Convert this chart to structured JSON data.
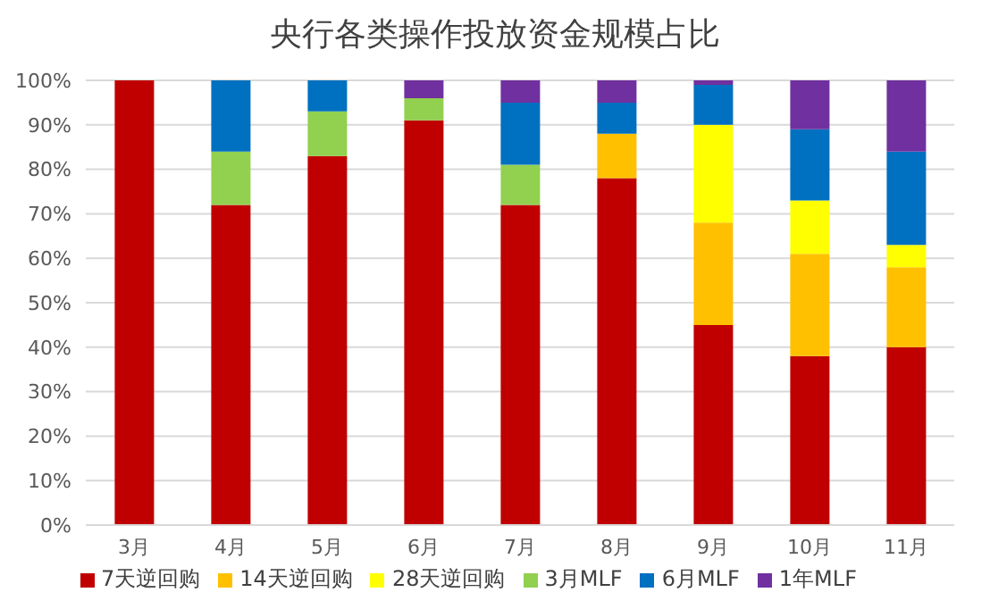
{
  "chart_data": {
    "type": "bar",
    "title": "央行各类操作投放资金规模占比",
    "stacked": true,
    "categories": [
      "3月",
      "4月",
      "5月",
      "6月",
      "7月",
      "8月",
      "9月",
      "10月",
      "11月"
    ],
    "series": [
      {
        "name": "7天逆回购",
        "color": "#c00000",
        "values": [
          100,
          72,
          83,
          91,
          72,
          78,
          45,
          38,
          40
        ]
      },
      {
        "name": "14天逆回购",
        "color": "#ffc000",
        "values": [
          0,
          0,
          0,
          0,
          0,
          10,
          23,
          23,
          18
        ]
      },
      {
        "name": "28天逆回购",
        "color": "#ffff00",
        "values": [
          0,
          0,
          0,
          0,
          0,
          0,
          22,
          12,
          5
        ]
      },
      {
        "name": "3月MLF",
        "color": "#92d050",
        "values": [
          0,
          12,
          10,
          5,
          9,
          0,
          0,
          0,
          0
        ]
      },
      {
        "name": "6月MLF",
        "color": "#0070c0",
        "values": [
          0,
          16,
          7,
          0,
          14,
          7,
          9,
          16,
          21
        ]
      },
      {
        "name": "1年MLF",
        "color": "#7030a0",
        "values": [
          0,
          0,
          0,
          4,
          5,
          5,
          1,
          11,
          16
        ]
      }
    ],
    "ylim": [
      0,
      100
    ],
    "yticks": [
      {
        "value": 0,
        "label": "0%"
      },
      {
        "value": 10,
        "label": "10%"
      },
      {
        "value": 20,
        "label": "20%"
      },
      {
        "value": 30,
        "label": "30%"
      },
      {
        "value": 40,
        "label": "40%"
      },
      {
        "value": 50,
        "label": "50%"
      },
      {
        "value": 60,
        "label": "60%"
      },
      {
        "value": 70,
        "label": "70%"
      },
      {
        "value": 80,
        "label": "80%"
      },
      {
        "value": 90,
        "label": "90%"
      },
      {
        "value": 100,
        "label": "100%"
      }
    ],
    "grid": "y",
    "legend": "bottom"
  }
}
